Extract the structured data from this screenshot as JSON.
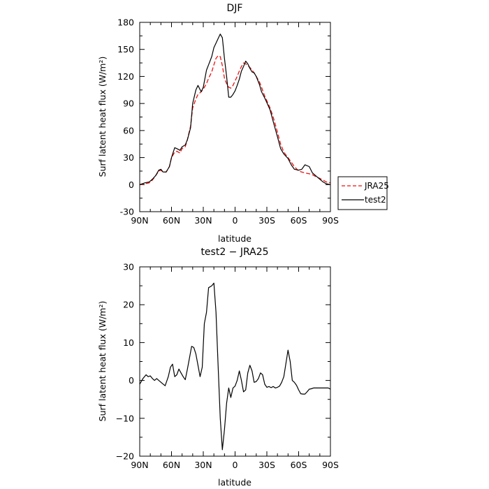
{
  "chart_data": [
    {
      "type": "line",
      "title": "DJF",
      "xlabel": "latitude",
      "ylabel": "Surf latent heat flux (W/m²)",
      "xlim": [
        90,
        -90
      ],
      "ylim": [
        -30,
        180
      ],
      "xticks": [
        90,
        60,
        30,
        0,
        -30,
        -60,
        -90
      ],
      "xtick_labels": [
        "90N",
        "60N",
        "30N",
        "0",
        "30S",
        "60S",
        "90S"
      ],
      "yticks": [
        -30,
        0,
        30,
        60,
        90,
        120,
        150,
        180
      ],
      "ytick_labels": [
        "-30",
        "0",
        "30",
        "60",
        "90",
        "120",
        "150",
        "180"
      ],
      "legend_position": "right",
      "series": [
        {
          "name": "JRA25",
          "color": "#ee1111",
          "dash": "dashed",
          "x": [
            90,
            85,
            81,
            78,
            75,
            72,
            70,
            68,
            65,
            62,
            60,
            57,
            55,
            52,
            50,
            47,
            45,
            42,
            40,
            37,
            35,
            32,
            30,
            27,
            25,
            22,
            20,
            18,
            16,
            14,
            12,
            10,
            8,
            6,
            4,
            2,
            0,
            -2,
            -4,
            -6,
            -8,
            -10,
            -12,
            -14,
            -16,
            -18,
            -20,
            -23,
            -25,
            -28,
            -30,
            -33,
            -36,
            -40,
            -43,
            -46,
            -50,
            -53,
            -56,
            -60,
            -63,
            -66,
            -70,
            -73,
            -76,
            -80,
            -83,
            -86,
            -90
          ],
          "y": [
            0,
            1,
            2,
            5,
            10,
            15,
            16,
            14,
            14,
            20,
            30,
            36,
            37,
            35,
            40,
            42,
            50,
            65,
            85,
            95,
            100,
            103,
            106,
            112,
            118,
            125,
            133,
            140,
            143,
            142,
            132,
            118,
            112,
            108,
            107,
            110,
            115,
            120,
            126,
            131,
            135,
            134,
            132,
            130,
            127,
            124,
            120,
            114,
            108,
            98,
            93,
            85,
            75,
            58,
            45,
            36,
            30,
            25,
            20,
            15,
            14,
            13,
            12,
            11,
            9,
            7,
            5,
            3,
            2
          ]
        },
        {
          "name": "test2",
          "color": "#000000",
          "dash": "solid",
          "x": [
            90,
            85,
            81,
            78,
            75,
            72,
            70,
            68,
            65,
            62,
            60,
            57,
            55,
            52,
            50,
            47,
            45,
            42,
            40,
            37,
            35,
            32,
            30,
            27,
            25,
            22,
            20,
            18,
            16,
            14,
            12,
            10,
            8,
            6,
            4,
            2,
            0,
            -2,
            -4,
            -6,
            -8,
            -10,
            -12,
            -14,
            -16,
            -18,
            -20,
            -23,
            -25,
            -28,
            -30,
            -33,
            -36,
            -40,
            -43,
            -46,
            -50,
            -53,
            -56,
            -60,
            -63,
            -66,
            -70,
            -73,
            -76,
            -80,
            -83,
            -86,
            -90
          ],
          "y": [
            0,
            2,
            3,
            6,
            10,
            16,
            17,
            14,
            14,
            20,
            30,
            41,
            40,
            38,
            42,
            44,
            50,
            63,
            90,
            105,
            110,
            103,
            108,
            127,
            133,
            142,
            152,
            157,
            162,
            167,
            163,
            140,
            120,
            97,
            97,
            100,
            104,
            110,
            117,
            126,
            131,
            137,
            134,
            129,
            125,
            124,
            120,
            111,
            103,
            96,
            91,
            83,
            70,
            53,
            40,
            34,
            29,
            22,
            17,
            16,
            17,
            22,
            20,
            13,
            10,
            6,
            3,
            1,
            0
          ]
        }
      ]
    },
    {
      "type": "line",
      "title": "test2 − JRA25",
      "xlabel": "latitude",
      "ylabel": "Surf latent heat flux (W/m²)",
      "xlim": [
        90,
        -90
      ],
      "ylim": [
        -20,
        30
      ],
      "xticks": [
        90,
        60,
        30,
        0,
        -30,
        -60,
        -90
      ],
      "xtick_labels": [
        "90N",
        "60N",
        "30N",
        "0",
        "30S",
        "60S",
        "90S"
      ],
      "yticks": [
        -20,
        -10,
        0,
        10,
        20,
        30
      ],
      "ytick_labels": [
        "−20",
        "−10",
        "0",
        "10",
        "20",
        "30"
      ],
      "series": [
        {
          "color": "#000000",
          "dash": "solid",
          "x": [
            90,
            87,
            84,
            82,
            80,
            78,
            76,
            74,
            72,
            69,
            66,
            63,
            61,
            59,
            57,
            55,
            53,
            51,
            49,
            47,
            45,
            43,
            41,
            39,
            37,
            35,
            33,
            31,
            29,
            27,
            25,
            22,
            20,
            18,
            16,
            14,
            12,
            10,
            8,
            6,
            4,
            2,
            0,
            -2,
            -4,
            -6,
            -8,
            -10,
            -12,
            -14,
            -16,
            -18,
            -20,
            -22,
            -24,
            -26,
            -28,
            -30,
            -32,
            -34,
            -36,
            -38,
            -40,
            -42,
            -44,
            -46,
            -48,
            -50,
            -52,
            -54,
            -56,
            -58,
            -60,
            -62,
            -64,
            -66,
            -68,
            -70,
            -72,
            -74,
            -76,
            -78,
            -80,
            -82,
            -84,
            -86,
            -88,
            -90
          ],
          "y": [
            -1,
            0.5,
            1.5,
            1,
            1.2,
            0.5,
            0,
            0.5,
            0,
            -0.7,
            -1.4,
            1,
            3.5,
            4.3,
            1,
            1.5,
            3,
            2,
            1,
            0.2,
            3,
            6,
            9,
            8.7,
            7,
            4,
            1,
            3.5,
            15,
            18,
            24.5,
            25,
            25.7,
            18,
            4,
            -10,
            -18.3,
            -13,
            -6,
            -2,
            -4.5,
            -2,
            -1.5,
            0,
            2.5,
            0,
            -3,
            -2.5,
            2,
            4,
            2.5,
            -0.5,
            -0.3,
            0.5,
            2,
            1.5,
            -1,
            -1.8,
            -1.6,
            -1.9,
            -1.6,
            -2,
            -1.8,
            -1.5,
            -0.5,
            1,
            4.5,
            8,
            5,
            0,
            -0.5,
            -1.3,
            -2.5,
            -3.5,
            -3.6,
            -3.6,
            -3,
            -2.3,
            -2.2,
            -2,
            -2,
            -2,
            -2,
            -2,
            -2,
            -2,
            -2,
            -2.3
          ]
        }
      ]
    }
  ]
}
